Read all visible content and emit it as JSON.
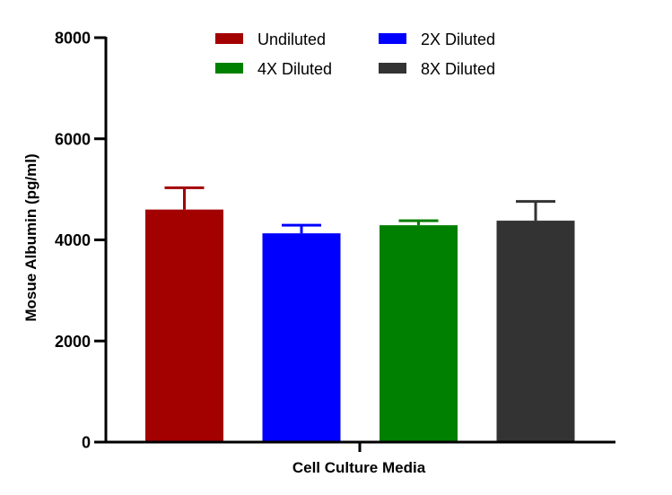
{
  "chart_data": {
    "type": "bar",
    "title": "",
    "xlabel": "Cell Culture Media",
    "ylabel": "Mosue Albumin (pg/ml)",
    "ylim": [
      0,
      8000
    ],
    "yticks": [
      0,
      2000,
      4000,
      6000,
      8000
    ],
    "grid": false,
    "legend_position": "top",
    "series": [
      {
        "name": "Undiluted",
        "value": 4600,
        "error": 430,
        "color": "#a30000"
      },
      {
        "name": "2X Diluted",
        "value": 4130,
        "error": 160,
        "color": "#0000ff"
      },
      {
        "name": "4X Diluted",
        "value": 4290,
        "error": 90,
        "color": "#008000"
      },
      {
        "name": "8X Diluted",
        "value": 4380,
        "error": 380,
        "color": "#333333"
      }
    ]
  }
}
